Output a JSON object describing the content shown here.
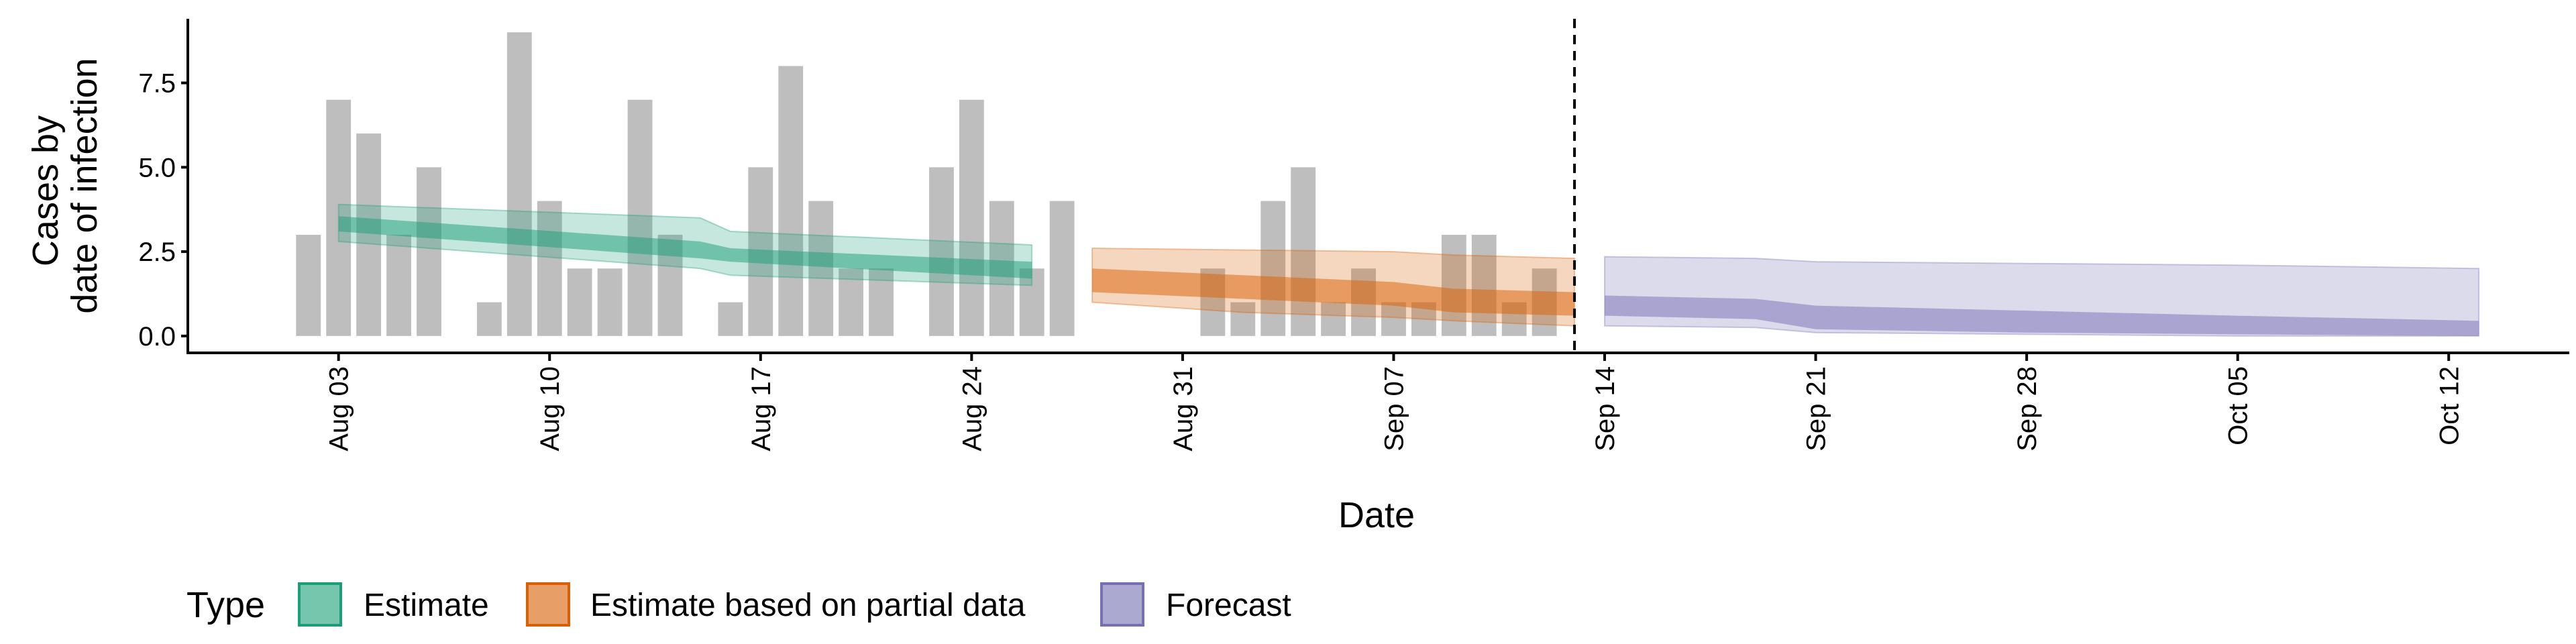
{
  "chart_data": {
    "type": "bar",
    "xlabel": "Date",
    "ylabel_lines": [
      "Cases by",
      "date of infection"
    ],
    "ylim": [
      -0.5,
      9.4
    ],
    "y_ticks": [
      0,
      2.5,
      5,
      7.5
    ],
    "y_tick_labels": [
      "0.0",
      "2.5",
      "5.0",
      "7.5"
    ],
    "x_ticks": [
      "2020-08-03",
      "2020-08-10",
      "2020-08-17",
      "2020-08-24",
      "2020-08-31",
      "2020-09-07",
      "2020-09-14",
      "2020-09-21",
      "2020-09-28",
      "2020-10-05",
      "2020-10-12"
    ],
    "x_tick_labels": [
      "Aug 03",
      "Aug 10",
      "Aug 17",
      "Aug 24",
      "Aug 31",
      "Sep 07",
      "Sep 14",
      "Sep 21",
      "Sep 28",
      "Oct 05",
      "Oct 12"
    ],
    "xlim": [
      "2020-07-29",
      "2020-10-16"
    ],
    "cutoff_date": "2020-09-13",
    "bars": {
      "color": "#bebebe",
      "dates": [
        "2020-08-02",
        "2020-08-03",
        "2020-08-04",
        "2020-08-05",
        "2020-08-06",
        "2020-08-07",
        "2020-08-08",
        "2020-08-09",
        "2020-08-10",
        "2020-08-11",
        "2020-08-12",
        "2020-08-13",
        "2020-08-14",
        "2020-08-15",
        "2020-08-16",
        "2020-08-17",
        "2020-08-18",
        "2020-08-19",
        "2020-08-20",
        "2020-08-21",
        "2020-08-22",
        "2020-08-23",
        "2020-08-24",
        "2020-08-25",
        "2020-08-26",
        "2020-08-27",
        "2020-08-28",
        "2020-08-29",
        "2020-08-30",
        "2020-08-31",
        "2020-09-01",
        "2020-09-02",
        "2020-09-03",
        "2020-09-04",
        "2020-09-05",
        "2020-09-06",
        "2020-09-07",
        "2020-09-08",
        "2020-09-09",
        "2020-09-10",
        "2020-09-11",
        "2020-09-12"
      ],
      "values": [
        3,
        7,
        6,
        3,
        5,
        0,
        1,
        9,
        4,
        2,
        2,
        7,
        3,
        0,
        1,
        5,
        8,
        4,
        2,
        2,
        0,
        5,
        7,
        4,
        2,
        4,
        0,
        0,
        0,
        0,
        2,
        1,
        4,
        5,
        1,
        2,
        1,
        1,
        3,
        3,
        1,
        2
      ]
    },
    "series": [
      {
        "name": "Estimate",
        "color": "#1b9e77",
        "dates": [
          "2020-08-03",
          "2020-08-15",
          "2020-08-16",
          "2020-08-26"
        ],
        "outer_lower": [
          2.8,
          2.0,
          1.8,
          1.5
        ],
        "outer_upper": [
          3.9,
          3.5,
          3.1,
          2.7
        ],
        "inner_lower": [
          3.1,
          2.3,
          2.2,
          1.7
        ],
        "inner_upper": [
          3.55,
          2.8,
          2.6,
          2.2
        ]
      },
      {
        "name": "Estimate based on partial data",
        "color": "#d95f02",
        "dates": [
          "2020-08-28",
          "2020-09-02",
          "2020-09-07",
          "2020-09-09",
          "2020-09-13"
        ],
        "outer_lower": [
          1.0,
          0.7,
          0.55,
          0.45,
          0.3
        ],
        "outer_upper": [
          2.6,
          2.55,
          2.5,
          2.4,
          2.3
        ],
        "inner_lower": [
          1.3,
          1.1,
          0.9,
          0.7,
          0.6
        ],
        "inner_upper": [
          2.0,
          1.8,
          1.6,
          1.4,
          1.3
        ]
      },
      {
        "name": "Forecast",
        "color": "#7570b3",
        "dates": [
          "2020-09-14",
          "2020-09-19",
          "2020-09-21",
          "2020-09-28",
          "2020-10-05",
          "2020-10-13"
        ],
        "outer_lower": [
          0.3,
          0.25,
          0.1,
          0.05,
          0.0,
          0.0
        ],
        "outer_upper": [
          2.35,
          2.3,
          2.2,
          2.15,
          2.1,
          2.0
        ],
        "inner_lower": [
          0.6,
          0.5,
          0.2,
          0.1,
          0.05,
          0.0
        ],
        "inner_upper": [
          1.2,
          1.1,
          0.9,
          0.75,
          0.6,
          0.45
        ]
      }
    ],
    "legend": {
      "title": "Type",
      "position": "bottom-left",
      "entries": [
        "Estimate",
        "Estimate based on partial data",
        "Forecast"
      ]
    },
    "grid": false
  }
}
